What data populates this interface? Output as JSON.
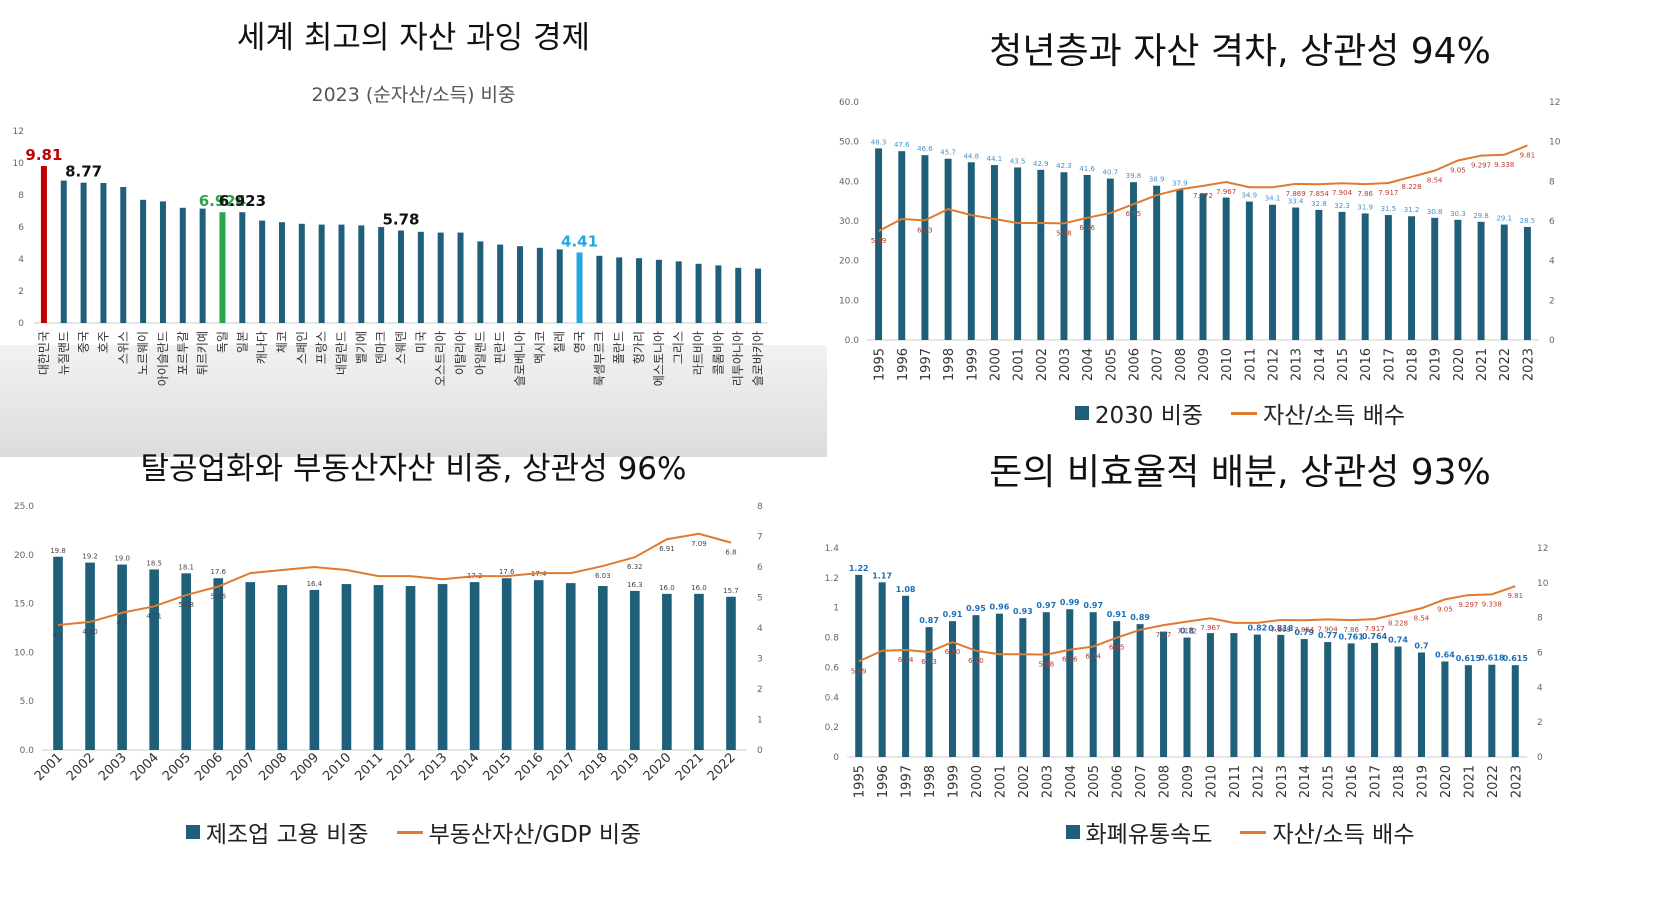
{
  "colors": {
    "bar": "#1f5f7a",
    "line_orange": "#e07a2e",
    "line_red": "#c0392b",
    "highlight_red": "#c00000",
    "highlight_green": "#2ca44a",
    "highlight_blue": "#22a7e0",
    "label_blue": "#4a90c8",
    "label_red": "#c0392b"
  },
  "panels": {
    "p1": {
      "title": "세계 최고의 자산 과잉 경제",
      "subtitle": "2023 (순자산/소득) 비중"
    },
    "p2": {
      "title": "청년층과 자산 격차, 상관성 94%",
      "legend_bar": "2030 비중",
      "legend_line": "자산/소득 배수"
    },
    "p3": {
      "title": "탈공업화와 부동산자산 비중, 상관성 96%",
      "legend_bar": "제조업 고용 비중",
      "legend_line": "부동산자산/GDP 비중"
    },
    "p4": {
      "title": "돈의 비효율적 배분, 상관성 93%",
      "legend_bar": "화폐유통속도",
      "legend_line": "자산/소득 배수"
    }
  },
  "chart_data": [
    {
      "id": "p1",
      "type": "bar",
      "categories": [
        "대한민국",
        "뉴질랜드",
        "중국",
        "호주",
        "스위스",
        "노르웨이",
        "아이슬란드",
        "포르투갈",
        "튀르키예",
        "독일",
        "일본",
        "캐나다",
        "체코",
        "스페인",
        "프랑스",
        "네덜란드",
        "벨기에",
        "덴마크",
        "스웨덴",
        "미국",
        "오스트리아",
        "이탈리아",
        "아일랜드",
        "핀란드",
        "슬로베니아",
        "멕시코",
        "칠레",
        "영국",
        "룩셈부르크",
        "폴란드",
        "헝가리",
        "에스토니아",
        "그리스",
        "라트비아",
        "콜롬비아",
        "리투아니아",
        "슬로바키아"
      ],
      "values": [
        9.81,
        8.9,
        8.77,
        8.75,
        8.5,
        7.7,
        7.6,
        7.2,
        7.15,
        6.924,
        6.923,
        6.4,
        6.3,
        6.2,
        6.15,
        6.15,
        6.1,
        6.0,
        5.78,
        5.7,
        5.65,
        5.65,
        5.1,
        4.9,
        4.8,
        4.7,
        4.6,
        4.41,
        4.2,
        4.1,
        4.05,
        3.95,
        3.85,
        3.7,
        3.6,
        3.45,
        3.4
      ],
      "labels": [
        {
          "index": 0,
          "text": "9.81",
          "color": "#c00000"
        },
        {
          "index": 2,
          "text": "8.77",
          "color": "#111111"
        },
        {
          "index": 9,
          "text": "6.924",
          "color": "#2ca44a"
        },
        {
          "index": 10,
          "text": "6.923",
          "color": "#111111"
        },
        {
          "index": 18,
          "text": "5.78",
          "color": "#111111"
        },
        {
          "index": 27,
          "text": "4.41",
          "color": "#22a7e0"
        }
      ],
      "highlight": [
        {
          "index": 0,
          "color": "#c00000"
        },
        {
          "index": 9,
          "color": "#2ca44a"
        },
        {
          "index": 27,
          "color": "#22a7e0"
        }
      ],
      "ylim": [
        0,
        12
      ],
      "yticks": [
        "0",
        "2",
        "4",
        "6",
        "8",
        "10",
        "12"
      ]
    },
    {
      "id": "p2",
      "type": "bar",
      "categories": [
        "1995",
        "1996",
        "1997",
        "1998",
        "1999",
        "2000",
        "2001",
        "2002",
        "2003",
        "2004",
        "2005",
        "2006",
        "2007",
        "2008",
        "2009",
        "2010",
        "2011",
        "2012",
        "2013",
        "2014",
        "2015",
        "2016",
        "2017",
        "2018",
        "2019",
        "2020",
        "2021",
        "2022",
        "2023"
      ],
      "series": [
        {
          "name": "2030 비중",
          "type": "bar",
          "axis": "left",
          "values": [
            48.3,
            47.6,
            46.6,
            45.7,
            44.8,
            44.1,
            43.5,
            42.9,
            42.3,
            41.6,
            40.7,
            39.8,
            38.9,
            37.9,
            36.9,
            35.9,
            34.9,
            34.1,
            33.4,
            32.8,
            32.3,
            31.9,
            31.5,
            31.2,
            30.8,
            30.3,
            29.8,
            29.1,
            28.5
          ],
          "labels": [
            "48.3",
            "47.6",
            "46.6",
            "45.7",
            "44.8",
            "44.1",
            "43.5",
            "42.9",
            "42.3",
            "41.6",
            "40.7",
            "39.8",
            "38.9",
            "37.9",
            "",
            "",
            "34.9",
            "34.1",
            "33.4",
            "32.8",
            "32.3",
            "31.9",
            "31.5",
            "31.2",
            "30.8",
            "30.3",
            "29.8",
            "29.1",
            "28.5"
          ]
        },
        {
          "name": "자산/소득 배수",
          "type": "line",
          "axis": "right",
          "values": [
            5.49,
            6.1,
            6.03,
            6.6,
            6.3,
            6.1,
            5.9,
            5.9,
            5.88,
            6.16,
            6.4,
            6.85,
            7.3,
            7.6,
            7.772,
            7.967,
            7.7,
            7.7,
            7.869,
            7.854,
            7.904,
            7.86,
            7.917,
            8.228,
            8.54,
            9.05,
            9.297,
            9.338,
            9.81
          ],
          "labels": [
            "5.49",
            "",
            "6.03",
            "",
            "",
            "",
            "",
            "",
            "5.88",
            "6.16",
            "",
            "6.85",
            "",
            "",
            "7.772",
            "7.967",
            "",
            "",
            "7.869",
            "7.854",
            "7.904",
            "7.86",
            "7.917",
            "8.228",
            "8.54",
            "9.05",
            "9.297",
            "9.338",
            "9.81"
          ]
        }
      ],
      "ylim": [
        0,
        60
      ],
      "yticks": [
        "0.0",
        "10.0",
        "20.0",
        "30.0",
        "40.0",
        "50.0",
        "60.0"
      ],
      "y2lim": [
        0,
        12
      ],
      "y2ticks": [
        "0",
        "2",
        "4",
        "6",
        "8",
        "10",
        "12"
      ]
    },
    {
      "id": "p3",
      "type": "bar",
      "categories": [
        "2001",
        "2002",
        "2003",
        "2004",
        "2005",
        "2006",
        "2007",
        "2008",
        "2009",
        "2010",
        "2011",
        "2012",
        "2013",
        "2014",
        "2015",
        "2016",
        "2017",
        "2018",
        "2019",
        "2020",
        "2021",
        "2022"
      ],
      "series": [
        {
          "name": "제조업 고용 비중",
          "type": "bar",
          "axis": "left",
          "values": [
            19.8,
            19.2,
            19.0,
            18.5,
            18.1,
            17.6,
            17.2,
            16.9,
            16.4,
            17.0,
            16.9,
            16.8,
            17.0,
            17.2,
            17.6,
            17.4,
            17.1,
            16.8,
            16.3,
            16.0,
            16.0,
            15.7
          ],
          "labels": [
            "19.8",
            "19.2",
            "19.0",
            "18.5",
            "18.1",
            "17.6",
            "",
            "",
            "16.4",
            "",
            "",
            "",
            "",
            "17.2",
            "17.6",
            "17.4",
            "",
            "",
            "16.3",
            "16.0",
            "16.0",
            "15.7"
          ]
        },
        {
          "name": "부동산자산/GDP 비중",
          "type": "line",
          "axis": "right",
          "values": [
            4.1,
            4.2,
            4.5,
            4.71,
            5.08,
            5.36,
            5.8,
            5.9,
            6.0,
            5.9,
            5.7,
            5.7,
            5.6,
            5.7,
            5.7,
            5.8,
            5.8,
            6.03,
            6.32,
            6.91,
            7.09,
            6.8
          ],
          "labels": [
            "4.1",
            "4.20",
            "4.5",
            "4.71",
            "5.08",
            "5.36",
            "",
            "",
            "",
            "",
            "",
            "",
            "",
            "",
            "",
            "",
            "",
            "6.03",
            "6.32",
            "6.91",
            "7.09",
            "6.8"
          ]
        }
      ],
      "ylim": [
        0,
        25
      ],
      "yticks": [
        "0.0",
        "5.0",
        "10.0",
        "15.0",
        "20.0",
        "25.0"
      ],
      "y2lim": [
        0,
        8
      ],
      "y2ticks": [
        "0",
        "1",
        "2",
        "3",
        "4",
        "5",
        "6",
        "7",
        "8"
      ]
    },
    {
      "id": "p4",
      "type": "bar",
      "categories": [
        "1995",
        "1996",
        "1997",
        "1998",
        "1999",
        "2000",
        "2001",
        "2002",
        "2003",
        "2004",
        "2005",
        "2006",
        "2007",
        "2008",
        "2009",
        "2010",
        "2011",
        "2012",
        "2013",
        "2014",
        "2015",
        "2016",
        "2017",
        "2018",
        "2019",
        "2020",
        "2021",
        "2022",
        "2023"
      ],
      "series": [
        {
          "name": "화폐유통속도",
          "type": "bar",
          "axis": "left",
          "values": [
            1.22,
            1.17,
            1.08,
            0.87,
            0.91,
            0.95,
            0.96,
            0.93,
            0.97,
            0.99,
            0.97,
            0.91,
            0.89,
            0.84,
            0.8,
            0.83,
            0.83,
            0.82,
            0.818,
            0.79,
            0.77,
            0.761,
            0.764,
            0.74,
            0.7,
            0.64,
            0.615,
            0.618,
            0.615
          ],
          "labels": [
            "1.22",
            "1.17",
            "1.08",
            "0.87",
            "0.91",
            "0.95",
            "0.96",
            "0.93",
            "0.97",
            "0.99",
            "0.97",
            "0.91",
            "0.89",
            "",
            "0.8",
            "",
            "",
            "0.82",
            "0.818",
            "0.79",
            "0.77",
            "0.761",
            "0.764",
            "0.74",
            "0.7",
            "0.64",
            "0.615",
            "0.618",
            "0.615"
          ]
        },
        {
          "name": "자산/소득 배수",
          "type": "line",
          "axis": "right",
          "values": [
            5.49,
            6.1,
            6.14,
            6.03,
            6.6,
            6.1,
            5.9,
            5.9,
            5.88,
            6.16,
            6.34,
            6.85,
            7.3,
            7.57,
            7.772,
            7.967,
            7.7,
            7.7,
            7.869,
            7.854,
            7.904,
            7.86,
            7.917,
            8.228,
            8.54,
            9.05,
            9.297,
            9.338,
            9.81
          ],
          "labels": [
            "5.49",
            "",
            "6.14",
            "6.03",
            "6.60",
            "6.10",
            "",
            "",
            "5.88",
            "6.16",
            "6.34",
            "6.85",
            "",
            "7.57",
            "7.772",
            "7.967",
            "",
            "",
            "7.869",
            "7.854",
            "7.904",
            "7.86",
            "7.917",
            "8.228",
            "8.54",
            "9.05",
            "9.297",
            "9.338",
            "9.81"
          ]
        }
      ],
      "ylim": [
        0,
        1.4
      ],
      "yticks": [
        "0",
        "0.2",
        "0.4",
        "0.6",
        "0.8",
        "1",
        "1.2",
        "1.4"
      ],
      "y2lim": [
        0,
        12
      ],
      "y2ticks": [
        "0",
        "2",
        "4",
        "6",
        "8",
        "10",
        "12"
      ]
    }
  ]
}
